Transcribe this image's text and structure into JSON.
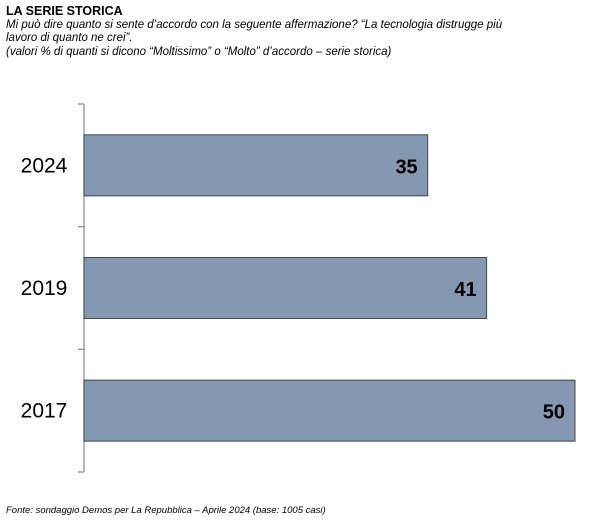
{
  "header": {
    "title": "LA SERIE STORICA",
    "question_line1": "Mi può dire quanto si sente d’accordo con la seguente affermazione? “La tecnologia distrugge più",
    "question_line2": "lavoro di quanto ne crei”.",
    "note": "(valori % di quanti si dicono “Moltissimo” o “Molto” d’accordo – serie storica)"
  },
  "footer": {
    "source": "Fonte: sondaggio Demos per La Repubblica – Aprile 2024 (base: 1005 casi)"
  },
  "colors": {
    "bar_fill": "#8598b2",
    "bar_stroke": "#3f4652",
    "axis": "#888888"
  },
  "chart_data": {
    "type": "bar",
    "orientation": "horizontal",
    "categories": [
      "2024",
      "2019",
      "2017"
    ],
    "values": [
      35,
      41,
      50
    ],
    "xlim": [
      0,
      50
    ],
    "grid": false,
    "legend": "none"
  }
}
